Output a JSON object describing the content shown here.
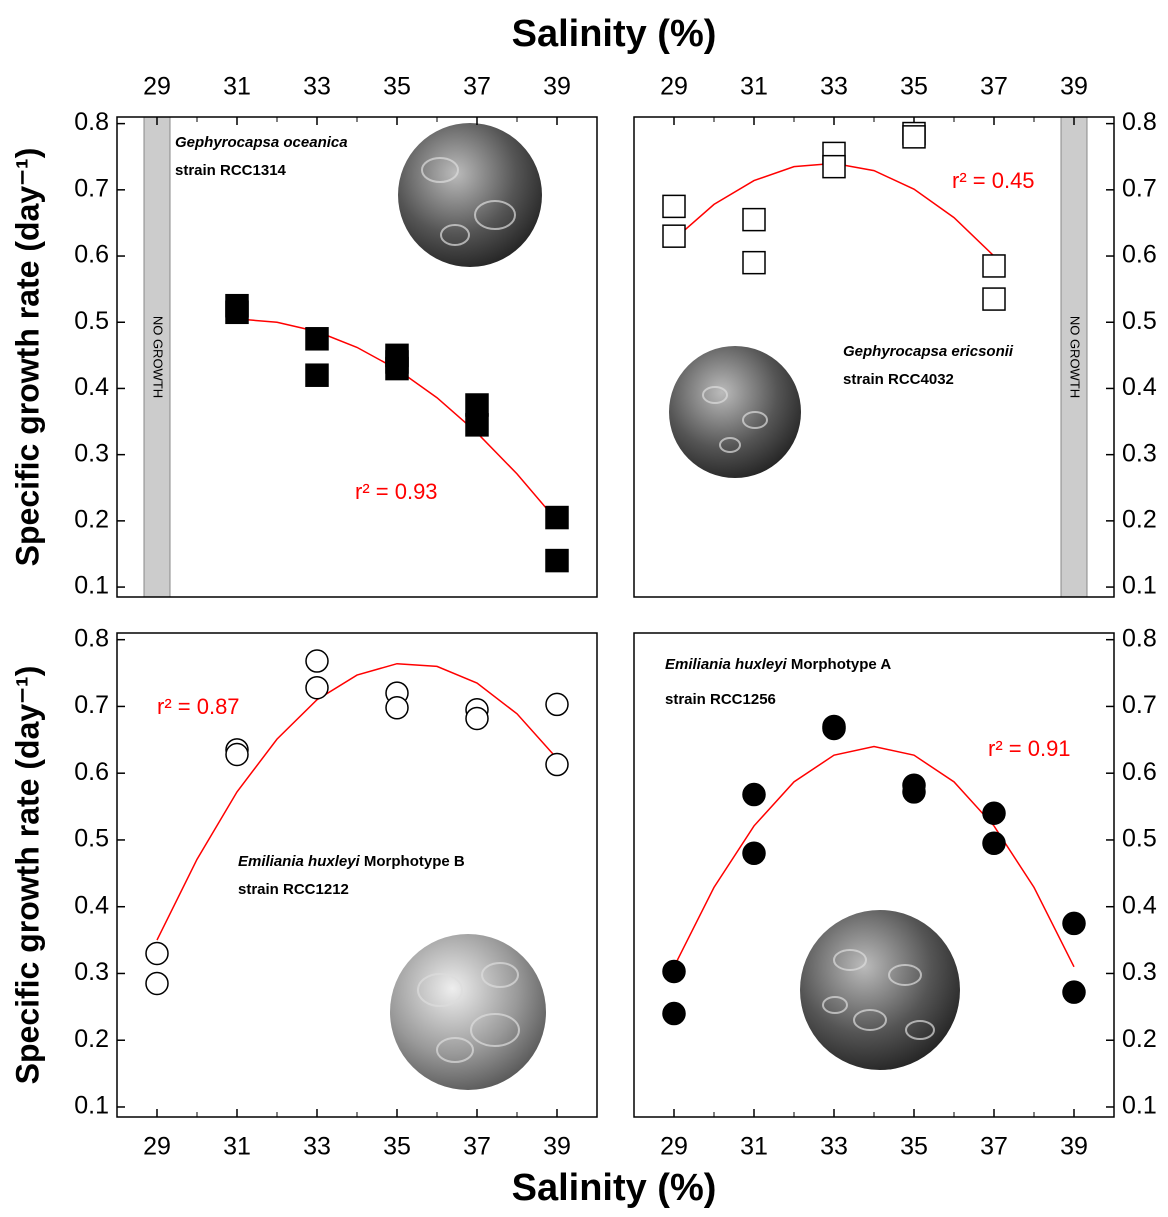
{
  "chart_data": [
    {
      "type": "scatter",
      "xlabel": "Salinity (%)",
      "ylabel": "Specific growth rate (day⁻¹)",
      "xaxis_position": "top",
      "yaxis_position": "left",
      "xlim": [
        28,
        40
      ],
      "ylim": [
        0.085,
        0.81
      ],
      "xticks": [
        29,
        31,
        33,
        35,
        37,
        39
      ],
      "yticks": [
        0.1,
        0.2,
        0.3,
        0.4,
        0.5,
        0.6,
        0.7,
        0.8
      ],
      "species": "Gephyrocapsa oceanica",
      "strain": "strain RCC1314",
      "annotation": "r² = 0.93",
      "no_growth": {
        "x": 29,
        "label": "NO GROWTH"
      },
      "marker": "square",
      "fill": "#000000",
      "points": {
        "x": [
          31,
          31,
          33,
          33,
          35,
          35,
          35,
          37,
          37,
          39,
          39
        ],
        "values": [
          0.525,
          0.515,
          0.475,
          0.42,
          0.45,
          0.44,
          0.43,
          0.375,
          0.345,
          0.205,
          0.14
        ]
      },
      "fit": {
        "color": "#ff0000",
        "x": [
          31,
          32,
          33,
          34,
          35,
          36,
          37,
          38,
          39
        ],
        "values": [
          0.505,
          0.5,
          0.486,
          0.462,
          0.429,
          0.386,
          0.333,
          0.271,
          0.2
        ]
      }
    },
    {
      "type": "scatter",
      "xaxis_position": "top",
      "yaxis_position": "right",
      "xlim": [
        28,
        40
      ],
      "ylim": [
        0.085,
        0.81
      ],
      "xticks": [
        29,
        31,
        33,
        35,
        37,
        39
      ],
      "yticks": [
        0.1,
        0.2,
        0.3,
        0.4,
        0.5,
        0.6,
        0.7,
        0.8
      ],
      "species": "Gephyrocapsa ericsonii",
      "strain": "strain RCC4032",
      "annotation": "r² = 0.45",
      "no_growth": {
        "x": 39,
        "label": "NO GROWTH"
      },
      "marker": "square",
      "fill": "#ffffff",
      "points": {
        "x": [
          29,
          29,
          31,
          31,
          33,
          33,
          35,
          35,
          37,
          37
        ],
        "values": [
          0.675,
          0.63,
          0.655,
          0.59,
          0.755,
          0.735,
          0.785,
          0.78,
          0.585,
          0.535
        ]
      },
      "fit": {
        "color": "#ff0000",
        "x": [
          29,
          30,
          31,
          32,
          33,
          34,
          35,
          36,
          37
        ],
        "values": [
          0.625,
          0.678,
          0.714,
          0.735,
          0.74,
          0.729,
          0.701,
          0.658,
          0.6
        ]
      }
    },
    {
      "type": "scatter",
      "xlabel": "Salinity (%)",
      "ylabel": "Specific growth rate (day⁻¹)",
      "xaxis_position": "bottom",
      "yaxis_position": "left",
      "xlim": [
        28,
        40
      ],
      "ylim": [
        0.085,
        0.81
      ],
      "xticks": [
        29,
        31,
        33,
        35,
        37,
        39
      ],
      "yticks": [
        0.1,
        0.2,
        0.3,
        0.4,
        0.5,
        0.6,
        0.7,
        0.8
      ],
      "species": "Emiliania huxleyi",
      "morphotype": "Morphotype B",
      "strain": "strain RCC1212",
      "annotation": "r² = 0.87",
      "marker": "circle",
      "fill": "#ffffff",
      "points": {
        "x": [
          29,
          29,
          31,
          31,
          33,
          33,
          35,
          35,
          37,
          37,
          39,
          39
        ],
        "values": [
          0.33,
          0.285,
          0.635,
          0.628,
          0.768,
          0.728,
          0.72,
          0.698,
          0.695,
          0.682,
          0.703,
          0.613
        ]
      },
      "fit": {
        "color": "#ff0000",
        "x": [
          29,
          30,
          31,
          32,
          33,
          34,
          35,
          36,
          37,
          38,
          39
        ],
        "values": [
          0.35,
          0.471,
          0.572,
          0.651,
          0.71,
          0.747,
          0.764,
          0.76,
          0.735,
          0.689,
          0.622
        ]
      }
    },
    {
      "type": "scatter",
      "xaxis_position": "bottom",
      "yaxis_position": "right",
      "xlim": [
        28,
        40
      ],
      "ylim": [
        0.085,
        0.81
      ],
      "xticks": [
        29,
        31,
        33,
        35,
        37,
        39
      ],
      "yticks": [
        0.1,
        0.2,
        0.3,
        0.4,
        0.5,
        0.6,
        0.7,
        0.8
      ],
      "species": "Emiliania huxleyi",
      "morphotype": "Morphotype A",
      "strain": "strain RCC1256",
      "annotation": "r² = 0.91",
      "marker": "circle",
      "fill": "#000000",
      "points": {
        "x": [
          29,
          29,
          31,
          31,
          33,
          33,
          35,
          35,
          37,
          37,
          39,
          39
        ],
        "values": [
          0.303,
          0.24,
          0.568,
          0.48,
          0.67,
          0.667,
          0.582,
          0.572,
          0.54,
          0.495,
          0.375,
          0.272
        ]
      },
      "fit": {
        "color": "#ff0000",
        "x": [
          29,
          30,
          31,
          32,
          33,
          34,
          35,
          36,
          37,
          38,
          39
        ],
        "values": [
          0.31,
          0.429,
          0.521,
          0.587,
          0.627,
          0.64,
          0.627,
          0.587,
          0.521,
          0.429,
          0.31
        ]
      }
    }
  ]
}
